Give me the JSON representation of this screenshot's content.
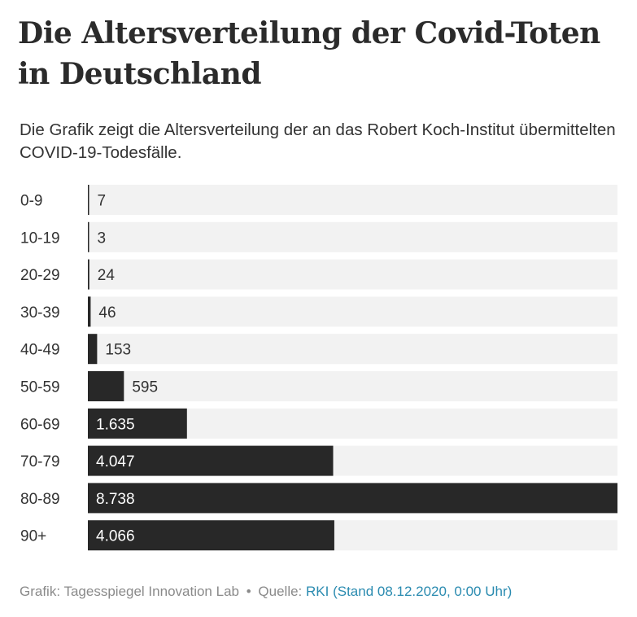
{
  "title": "Die Altersverteilung der Covid-Toten in Deutschland",
  "subtitle": "Die Grafik zeigt die Altersverteilung der an das Robert Koch-Institut übermittelten COVID-19-Todesfälle.",
  "footer": {
    "credit": "Grafik: Tagesspiegel Innovation Lab",
    "separator": "•",
    "source_label": "Quelle:",
    "source_link": "RKI (Stand 08.12.2020, 0:00 Uhr)"
  },
  "colors": {
    "bar": "#282828",
    "track": "#f2f2f2",
    "value_outside": "#333333",
    "value_inside": "#ffffff",
    "link": "#2a8bb0"
  },
  "chart_data": {
    "type": "bar",
    "orientation": "horizontal",
    "categories": [
      "0-9",
      "10-19",
      "20-29",
      "30-39",
      "40-49",
      "50-59",
      "60-69",
      "70-79",
      "80-89",
      "90+"
    ],
    "values": [
      7,
      3,
      24,
      46,
      153,
      595,
      1635,
      4047,
      8738,
      4066
    ],
    "value_labels": [
      "7",
      "3",
      "24",
      "46",
      "153",
      "595",
      "1.635",
      "4.047",
      "8.738",
      "4.066"
    ],
    "xlim": [
      0,
      8738
    ],
    "grid": false,
    "legend": "none"
  }
}
